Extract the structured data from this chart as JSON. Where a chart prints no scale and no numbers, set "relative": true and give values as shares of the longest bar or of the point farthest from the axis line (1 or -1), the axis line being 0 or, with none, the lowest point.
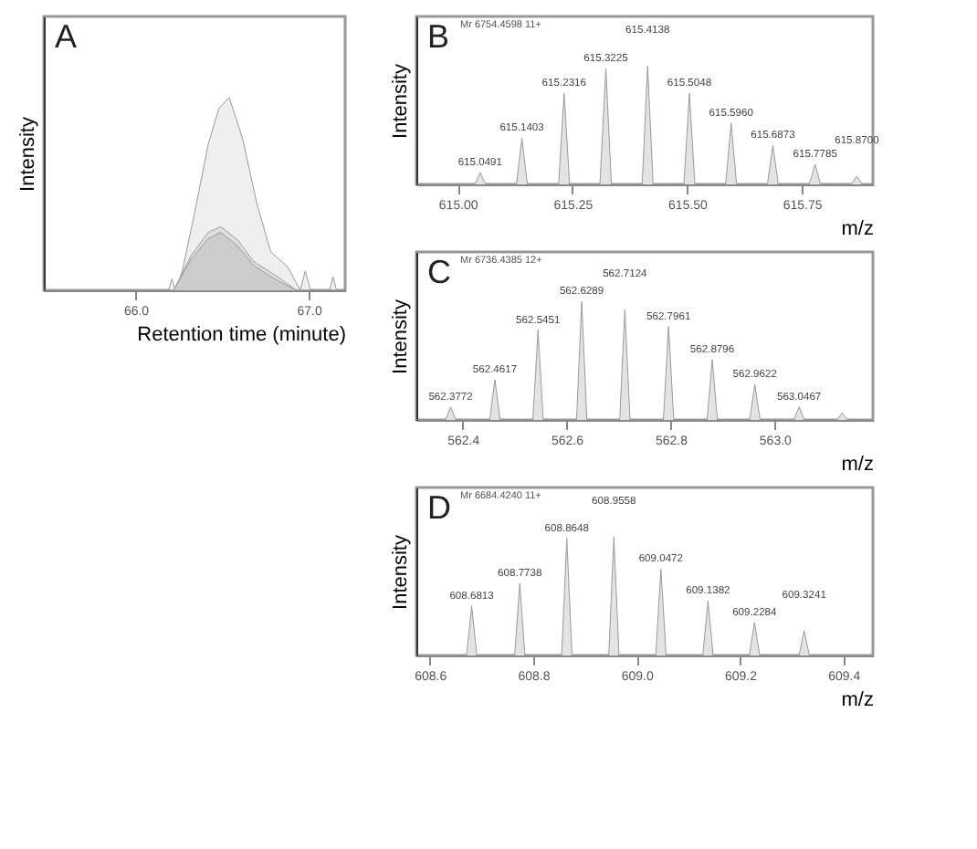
{
  "chart_data": [
    {
      "type": "area",
      "relative": true,
      "ylabel": "Intensity",
      "xlabel": "Retention time (minute)",
      "xlim": [
        65.47,
        67.21
      ],
      "legend": false,
      "xticks": [
        {
          "value": 66,
          "label": "66.0"
        },
        {
          "value": 67,
          "label": "67.0"
        }
      ],
      "grid": false,
      "annotations": [
        "A"
      ],
      "series": [
        {
          "color": "#efefef",
          "x": [
            65.47,
            66.19,
            66.21,
            66.23,
            66.27,
            66.34,
            66.42,
            66.48,
            66.54,
            66.57,
            66.62,
            66.7,
            66.78,
            66.88,
            66.95,
            66.98,
            67.01,
            67.12,
            67.14,
            67.16,
            67.21
          ],
          "values": [
            0,
            0,
            0.06,
            0,
            0.1,
            0.4,
            0.76,
            0.94,
            1.0,
            0.92,
            0.78,
            0.45,
            0.2,
            0.12,
            0,
            0.1,
            0,
            0,
            0.07,
            0,
            0
          ]
        },
        {
          "color": "#e0e0e0",
          "x": [
            65.47,
            66.22,
            66.32,
            66.42,
            66.49,
            66.52,
            66.59,
            66.68,
            66.82,
            66.93,
            67.21
          ],
          "values": [
            0,
            0,
            0.18,
            0.3,
            0.33,
            0.31,
            0.26,
            0.15,
            0.07,
            0,
            0
          ]
        },
        {
          "color": "#cccccc",
          "x": [
            65.47,
            66.22,
            66.32,
            66.42,
            66.49,
            66.52,
            66.59,
            66.68,
            66.82,
            66.93,
            67.21
          ],
          "values": [
            0,
            0,
            0.16,
            0.27,
            0.3,
            0.28,
            0.23,
            0.13,
            0.05,
            0,
            0
          ]
        }
      ]
    },
    {
      "type": "area",
      "relative": true,
      "ylabel": "Intensity",
      "xlabel": "m/z",
      "xlim": [
        614.91,
        615.905
      ],
      "legend": false,
      "xticks": [
        {
          "value": 615,
          "label": "615.00"
        },
        {
          "value": 615.25,
          "label": "615.25"
        },
        {
          "value": 615.5,
          "label": "615.50"
        },
        {
          "value": 615.75,
          "label": "615.75"
        }
      ],
      "grid": false,
      "annotations": [
        "B",
        "Mr 6754.4598 11+",
        {
          "text": "615.0491",
          "x": 615.049,
          "y": 0.1
        },
        {
          "text": "615.1403",
          "x": 615.14,
          "y": 0.39
        },
        {
          "text": "615.2316",
          "x": 615.232,
          "y": 0.77
        },
        {
          "text": "615.3225",
          "x": 615.323,
          "y": 0.98
        },
        {
          "text": "615.4138",
          "x": 615.414,
          "y": 1.0
        },
        {
          "text": "615.5048",
          "x": 615.505,
          "y": 0.77
        },
        {
          "text": "615.5960",
          "x": 615.596,
          "y": 0.52
        },
        {
          "text": "615.6873",
          "x": 615.687,
          "y": 0.33
        },
        {
          "text": "615.7785",
          "x": 615.779,
          "y": 0.17
        },
        {
          "text": "615.8700",
          "x": 615.87,
          "y": 0.07
        }
      ],
      "series": [
        {
          "color": "#e3e3e3",
          "x": [
            614.91,
            615.037,
            615.049,
            615.061,
            615.128,
            615.14,
            615.152,
            615.22,
            615.232,
            615.244,
            615.31,
            615.323,
            615.335,
            615.402,
            615.414,
            615.426,
            615.493,
            615.505,
            615.517,
            615.584,
            615.596,
            615.608,
            615.675,
            615.687,
            615.699,
            615.766,
            615.779,
            615.791,
            615.858,
            615.87,
            615.882,
            615.905
          ],
          "values": [
            0,
            0,
            0.1,
            0,
            0,
            0.39,
            0,
            0,
            0.77,
            0,
            0,
            0.98,
            0,
            0,
            1.0,
            0,
            0,
            0.77,
            0,
            0,
            0.52,
            0,
            0,
            0.33,
            0,
            0,
            0.17,
            0,
            0,
            0.07,
            0,
            0
          ]
        }
      ]
    },
    {
      "type": "area",
      "relative": true,
      "ylabel": "Intensity",
      "xlabel": "m/z",
      "xlim": [
        562.311,
        563.189
      ],
      "legend": false,
      "xticks": [
        562.4,
        562.6,
        562.8,
        {
          "value": 563,
          "label": "563.0"
        }
      ],
      "grid": false,
      "annotations": [
        "C",
        "Mr 6736.4385 12+",
        {
          "text": "562.3772",
          "x": 562.377,
          "y": 0.11
        },
        {
          "text": "562.4617",
          "x": 562.462,
          "y": 0.34
        },
        {
          "text": "562.5451",
          "x": 562.545,
          "y": 0.76
        },
        {
          "text": "562.6289",
          "x": 562.629,
          "y": 1.0
        },
        {
          "text": "562.7124",
          "x": 562.712,
          "y": 0.93
        },
        {
          "text": "562.7961",
          "x": 562.796,
          "y": 0.79
        },
        {
          "text": "562.8796",
          "x": 562.88,
          "y": 0.51
        },
        {
          "text": "562.9622",
          "x": 562.962,
          "y": 0.3
        },
        {
          "text": "563.0467",
          "x": 563.047,
          "y": 0.11
        }
      ],
      "series": [
        {
          "color": "#e3e3e3",
          "x": [
            562.311,
            562.367,
            562.377,
            562.387,
            562.452,
            562.462,
            562.472,
            562.535,
            562.545,
            562.555,
            562.619,
            562.629,
            562.639,
            562.702,
            562.712,
            562.722,
            562.786,
            562.796,
            562.806,
            562.87,
            562.88,
            562.89,
            562.952,
            562.962,
            562.972,
            563.037,
            563.047,
            563.057,
            563.12,
            563.13,
            563.14,
            563.189
          ],
          "values": [
            0,
            0,
            0.11,
            0,
            0,
            0.34,
            0,
            0,
            0.76,
            0,
            0,
            1.0,
            0,
            0,
            0.93,
            0,
            0,
            0.79,
            0,
            0,
            0.51,
            0,
            0,
            0.3,
            0,
            0,
            0.11,
            0,
            0,
            0.06,
            0,
            0
          ]
        }
      ]
    },
    {
      "type": "area",
      "relative": true,
      "ylabel": "Intensity",
      "xlabel": "m/z",
      "xlim": [
        608.574,
        609.457
      ],
      "legend": false,
      "xticks": [
        608.6,
        608.8,
        {
          "value": 609,
          "label": "609.0"
        },
        609.2,
        609.4
      ],
      "grid": false,
      "annotations": [
        "D",
        "Mr 6684.4240 11+",
        {
          "text": "608.6813",
          "x": 608.681,
          "y": 0.42
        },
        {
          "text": "608.7738",
          "x": 608.774,
          "y": 0.61
        },
        {
          "text": "608.8648",
          "x": 608.865,
          "y": 0.99
        },
        {
          "text": "608.9558",
          "x": 608.956,
          "y": 1.0
        },
        {
          "text": "609.0472",
          "x": 609.047,
          "y": 0.73
        },
        {
          "text": "609.1382",
          "x": 609.138,
          "y": 0.46
        },
        {
          "text": "609.2284",
          "x": 609.228,
          "y": 0.28
        },
        {
          "text": "609.3241",
          "x": 609.324,
          "y": 0.21
        }
      ],
      "series": [
        {
          "color": "#e3e3e3",
          "x": [
            608.574,
            608.671,
            608.681,
            608.691,
            608.764,
            608.774,
            608.784,
            608.855,
            608.865,
            608.875,
            608.946,
            608.956,
            608.966,
            609.037,
            609.047,
            609.057,
            609.128,
            609.138,
            609.148,
            609.218,
            609.228,
            609.238,
            609.314,
            609.324,
            609.334,
            609.457
          ],
          "values": [
            0,
            0,
            0.42,
            0,
            0,
            0.61,
            0,
            0,
            0.99,
            0,
            0,
            1.0,
            0,
            0,
            0.73,
            0,
            0,
            0.46,
            0,
            0,
            0.28,
            0,
            0,
            0.21,
            0,
            0
          ]
        }
      ]
    }
  ]
}
